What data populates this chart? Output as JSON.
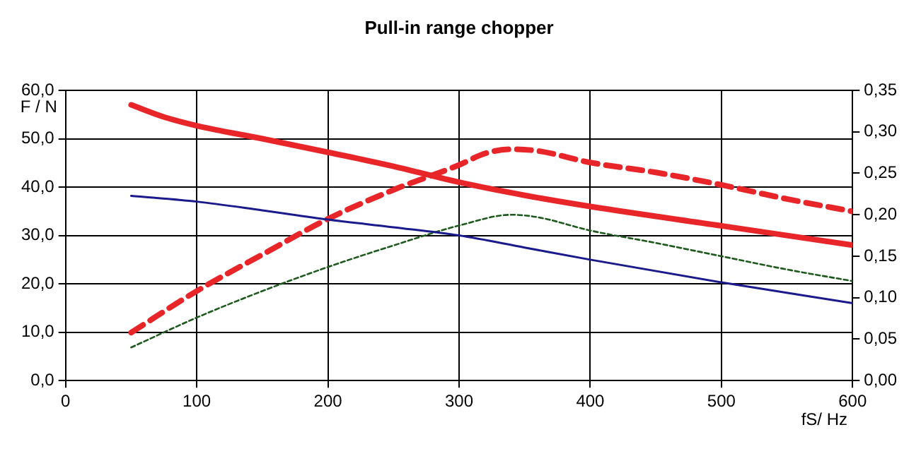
{
  "chart_data": {
    "type": "line",
    "title": "Pull-in range chopper",
    "xlabel": "fS/ Hz",
    "ylabel": "F / N",
    "xlim": [
      0,
      600
    ],
    "xticks": [
      0,
      100,
      200,
      300,
      400,
      500,
      600
    ],
    "ylim": [
      0,
      60
    ],
    "yticks": [
      {
        "value": 0,
        "label": "0,0"
      },
      {
        "value": 10,
        "label": "10,0"
      },
      {
        "value": 20,
        "label": "20,0"
      },
      {
        "value": 30,
        "label": "30,0"
      },
      {
        "value": 40,
        "label": "40,0"
      },
      {
        "value": 50,
        "label": "50,0"
      },
      {
        "value": 60,
        "label": "60,0"
      }
    ],
    "y2lim": [
      0,
      0.35
    ],
    "y2ticks": [
      {
        "value": 0,
        "label": "0,00"
      },
      {
        "value": 0.05,
        "label": "0,05"
      },
      {
        "value": 0.1,
        "label": "0,10"
      },
      {
        "value": 0.15,
        "label": "0,15"
      },
      {
        "value": 0.2,
        "label": "0,20"
      },
      {
        "value": 0.25,
        "label": "0,25"
      },
      {
        "value": 0.3,
        "label": "0,30"
      },
      {
        "value": 0.35,
        "label": "0,35"
      }
    ],
    "grid": true,
    "legend": false,
    "marker": "none",
    "series": [
      {
        "color": "#e8262a",
        "line_style": "solid",
        "x": [
          50,
          75,
          100,
          150,
          200,
          250,
          300,
          350,
          400,
          500,
          600
        ],
        "values": [
          57,
          54.5,
          52.7,
          50,
          47.2,
          44.3,
          41,
          38.3,
          36,
          32,
          28
        ]
      },
      {
        "color": "#1a1a8c",
        "line_style": "solid",
        "x": [
          50,
          100,
          150,
          200,
          250,
          300,
          350,
          400,
          500,
          600
        ],
        "values": [
          38.2,
          37,
          35.2,
          33.3,
          31.7,
          30,
          27.5,
          25,
          20.3,
          16
        ]
      },
      {
        "color": "#e8262a",
        "line_style": "dashed",
        "axis": "y2",
        "x": [
          50,
          100,
          150,
          200,
          250,
          300,
          320,
          340,
          360,
          400,
          450,
          500,
          550,
          600
        ],
        "values": [
          0.058,
          0.108,
          0.152,
          0.195,
          0.23,
          0.26,
          0.274,
          0.279,
          0.277,
          0.263,
          0.251,
          0.236,
          0.219,
          0.204
        ]
      },
      {
        "color": "#1e5a1e",
        "line_style": "dotted",
        "axis": "y2",
        "x": [
          50,
          100,
          150,
          200,
          250,
          300,
          340,
          360,
          400,
          450,
          500,
          550,
          600
        ],
        "values": [
          0.04,
          0.076,
          0.108,
          0.137,
          0.163,
          0.187,
          0.2,
          0.197,
          0.181,
          0.166,
          0.15,
          0.134,
          0.12
        ]
      }
    ]
  }
}
